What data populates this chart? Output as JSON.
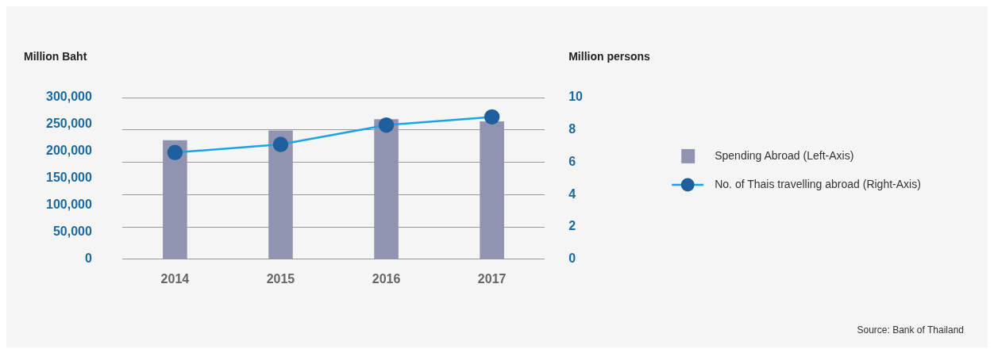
{
  "chart_data": {
    "type": "bar",
    "ylabel": "Million Baht",
    "y2label": "Million persons",
    "categories": [
      "2014",
      "2015",
      "2016",
      "2017"
    ],
    "series": [
      {
        "name": "Spending Abroad (Left-Axis)",
        "type": "bar",
        "color": "#9194b0",
        "values": [
          221000,
          239000,
          260000,
          256000
        ]
      },
      {
        "name": "No. of Thais travelling abroad (Right-Axis)",
        "type": "line",
        "axis": "y2",
        "color": "#1aa3e8",
        "marker": "circle",
        "values": [
          6.6,
          7.1,
          8.3,
          8.8
        ]
      }
    ],
    "ylim": [
      0,
      300000
    ],
    "yticks": [
      {
        "value": 0,
        "label": "0"
      },
      {
        "value": 50000,
        "label": "50,000"
      },
      {
        "value": 100000,
        "label": "100,000"
      },
      {
        "value": 150000,
        "label": "150,000"
      },
      {
        "value": 200000,
        "label": "200,000"
      },
      {
        "value": 250000,
        "label": "250,000"
      },
      {
        "value": 300000,
        "label": "300,000"
      }
    ],
    "y2lim": [
      0,
      10
    ],
    "y2ticks": [
      0,
      2,
      4,
      6,
      8,
      10
    ],
    "grid": true,
    "legend": "right",
    "annotations": [
      "Source: Bank of Thailand"
    ]
  }
}
